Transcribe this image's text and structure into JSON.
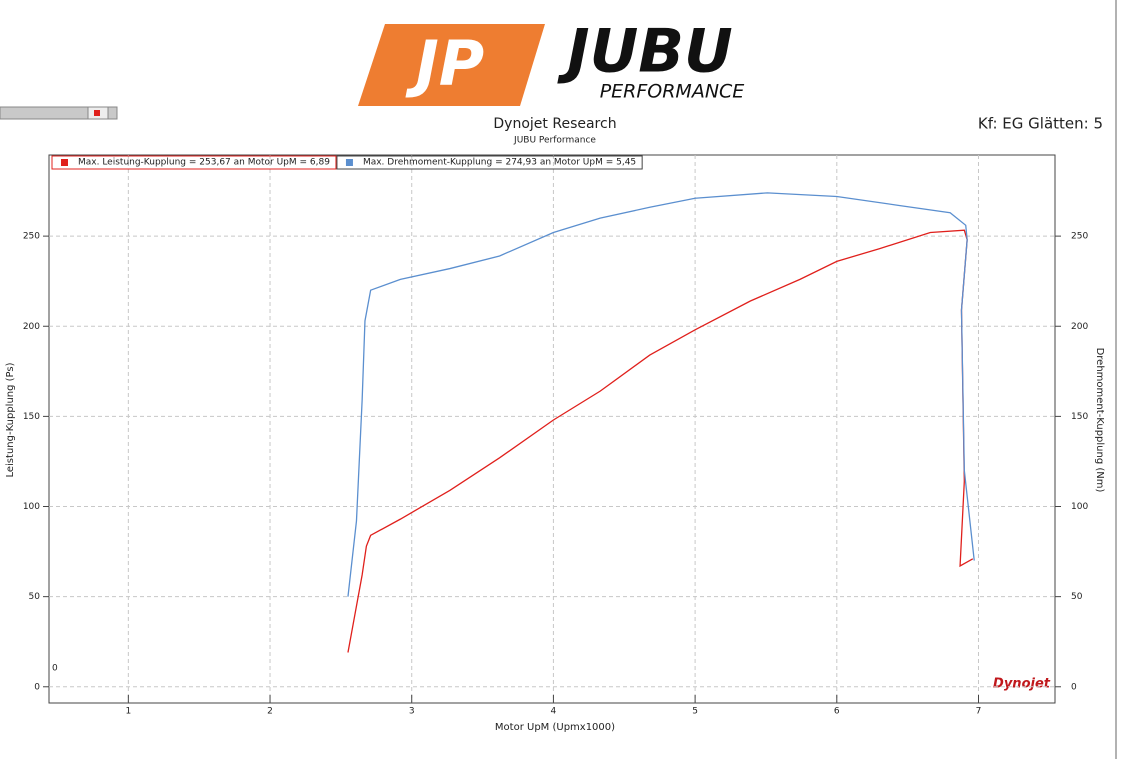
{
  "header": {
    "logo_mark": "JP",
    "logo_name": "JUBU",
    "logo_sub": "PERFORMANCE"
  },
  "smoothing": "Kf: EG Glätten: 5",
  "chart_data": {
    "type": "line",
    "title": "Dynojet Research",
    "subtitle": "JUBU Performance",
    "x_label": "Motor UpM (Upmx1000)",
    "y_label": "Leistung-Kupplung (Ps)",
    "y2_label": "Drehmoment-Kupplung (Nm)",
    "annotation": "0",
    "watermark": "Dynojet",
    "xlim": [
      0.44,
      7.54
    ],
    "xticks": [
      1,
      2,
      3,
      4,
      5,
      6,
      7
    ],
    "ylim": [
      -9,
      295
    ],
    "yticks": [
      0,
      50,
      100,
      150,
      200,
      250
    ],
    "y2lim": [
      -9,
      295
    ],
    "y2ticks": [
      0,
      50,
      100,
      150,
      200,
      250
    ],
    "grid": true,
    "legend": "top-left",
    "series": [
      {
        "name": "Max. Leistung-Kupplung = 253,67 an Motor UpM = 6,89",
        "color": "#e0201c",
        "x": [
          2.55,
          2.65,
          2.68,
          2.71,
          2.92,
          3.27,
          3.62,
          4.0,
          4.33,
          4.68,
          5.0,
          5.39,
          5.74,
          6.0,
          6.3,
          6.66,
          6.9,
          6.92,
          6.88,
          6.9,
          6.87,
          6.96
        ],
        "values": [
          19,
          62,
          78,
          84,
          93,
          109,
          127,
          148,
          164,
          184,
          198,
          214,
          226,
          236,
          243,
          252,
          253.3,
          248,
          209,
          114,
          67,
          71
        ]
      },
      {
        "name": "Max. Drehmoment-Kupplung = 274,93 an Motor UpM = 5,45",
        "color": "#5b8fcf",
        "axis": "y2",
        "x": [
          2.55,
          2.61,
          2.65,
          2.67,
          2.71,
          2.92,
          3.27,
          3.62,
          4.0,
          4.33,
          4.68,
          5.0,
          5.51,
          6.0,
          6.44,
          6.8,
          6.91,
          6.92,
          6.88,
          6.9,
          6.97
        ],
        "values": [
          50,
          92,
          159,
          203,
          220,
          226,
          232,
          239,
          252,
          260,
          266,
          271,
          274,
          272,
          267,
          263,
          256,
          248,
          209,
          120,
          70
        ]
      }
    ]
  }
}
